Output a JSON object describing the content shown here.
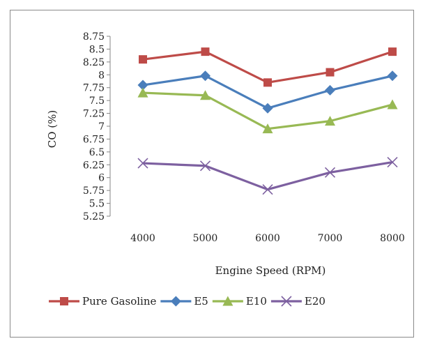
{
  "chart_data": {
    "type": "line",
    "title": "",
    "xlabel": "Engine Speed (RPM)",
    "ylabel": "CO (%)",
    "x": [
      4000,
      5000,
      6000,
      7000,
      8000
    ],
    "x_tick_labels": [
      "4000",
      "5000",
      "6000",
      "7000",
      "8000"
    ],
    "ylim": [
      5.25,
      8.75
    ],
    "y_ticks": [
      5.25,
      5.5,
      5.75,
      6,
      6.25,
      6.5,
      6.75,
      7,
      7.25,
      7.5,
      7.75,
      8,
      8.25,
      8.5,
      8.75
    ],
    "y_tick_labels": [
      "5.25",
      "5.5",
      "5.75",
      "6",
      "6.25",
      "6.5",
      "6.75",
      "7",
      "7.25",
      "7.5",
      "7.75",
      "8",
      "8.25",
      "8.5",
      "8.75"
    ],
    "grid": false,
    "legend_position": "bottom",
    "series": [
      {
        "name": "Pure Gasoline",
        "values": [
          8.3,
          8.45,
          7.85,
          8.05,
          8.45
        ],
        "color": "#be4b48",
        "marker": "square"
      },
      {
        "name": "E5",
        "values": [
          7.8,
          7.98,
          7.35,
          7.7,
          7.98
        ],
        "color": "#4a7ebb",
        "marker": "diamond"
      },
      {
        "name": "E10",
        "values": [
          7.65,
          7.6,
          6.95,
          7.1,
          7.42
        ],
        "color": "#98b954",
        "marker": "triangle"
      },
      {
        "name": "E20",
        "values": [
          6.28,
          6.23,
          5.77,
          6.1,
          6.3
        ],
        "color": "#7d60a0",
        "marker": "x"
      }
    ]
  }
}
